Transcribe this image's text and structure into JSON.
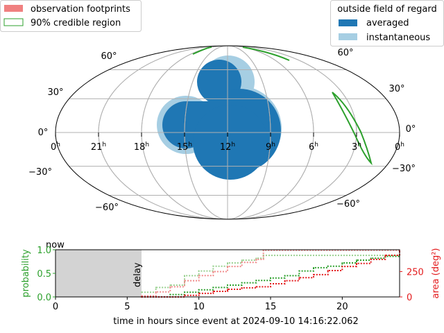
{
  "legend_left": {
    "items": [
      {
        "label": "observation footprints",
        "color": "#f08080"
      },
      {
        "label": "90% credible region",
        "color": "#2ca02c"
      }
    ]
  },
  "legend_right": {
    "title": "outside field of regard",
    "items": [
      {
        "label": "averaged",
        "color": "#1f77b4"
      },
      {
        "label": "instantaneous",
        "color": "#a6cee3"
      }
    ]
  },
  "map": {
    "ra_labels": [
      "0",
      "21",
      "18",
      "15",
      "12",
      "9",
      "6",
      "3",
      "0"
    ],
    "ra_unit": "h",
    "dec_labels_left": [
      "60°",
      "30°",
      "0°",
      "−30°",
      "−60°"
    ],
    "dec_labels_right": [
      "60°",
      "30°",
      "0°",
      "−30°",
      "−60°"
    ]
  },
  "chart_data": {
    "type": "line",
    "title": "",
    "xlabel": "time in hours since event at 2024-09-10 14:16:22.062",
    "ylabel": "probability",
    "ylabel_right": "area (deg²)",
    "xlim": [
      0,
      24
    ],
    "ylim": [
      0,
      1
    ],
    "ylim_right": [
      0,
      465
    ],
    "xticks": [
      "0",
      "5",
      "10",
      "15",
      "20"
    ],
    "yticks": [
      "0.0",
      "0.5",
      "1.0"
    ],
    "yticks_right": [
      "0",
      "250"
    ],
    "annotations": {
      "now": "now",
      "delay": "delay",
      "delay_hours": 6
    },
    "series": [
      {
        "name": "probability (instantaneous)",
        "axis": "left",
        "color": "#98d08f",
        "x": [
          6,
          7,
          8,
          9,
          10,
          11,
          12,
          13,
          14,
          14.5,
          24
        ],
        "y": [
          0.1,
          0.2,
          0.25,
          0.45,
          0.55,
          0.65,
          0.72,
          0.78,
          0.82,
          0.88,
          0.88
        ]
      },
      {
        "name": "probability (averaged)",
        "axis": "left",
        "color": "#2ca02c",
        "x": [
          6,
          8,
          9,
          10,
          11,
          12,
          13,
          14,
          15,
          16,
          17,
          18,
          19,
          20,
          21,
          22,
          23,
          24
        ],
        "y": [
          0,
          0.05,
          0.1,
          0.15,
          0.2,
          0.25,
          0.3,
          0.35,
          0.4,
          0.45,
          0.55,
          0.62,
          0.65,
          0.72,
          0.78,
          0.82,
          0.86,
          0.9
        ]
      },
      {
        "name": "area (instantaneous)",
        "axis": "right",
        "color": "#f08a8a",
        "x": [
          6,
          7,
          8,
          9,
          10,
          11,
          12,
          13,
          14,
          14.5,
          24
        ],
        "y": [
          10,
          50,
          100,
          160,
          210,
          250,
          300,
          340,
          370,
          460,
          460
        ]
      },
      {
        "name": "area (averaged)",
        "axis": "right",
        "color": "#e31a1c",
        "x": [
          6,
          8,
          9,
          10,
          11,
          12,
          13,
          14,
          15,
          16,
          17,
          18,
          19,
          20,
          21,
          22,
          23,
          24
        ],
        "y": [
          0,
          0,
          15,
          35,
          55,
          75,
          90,
          100,
          130,
          160,
          190,
          220,
          260,
          300,
          330,
          370,
          410,
          450
        ]
      }
    ]
  }
}
